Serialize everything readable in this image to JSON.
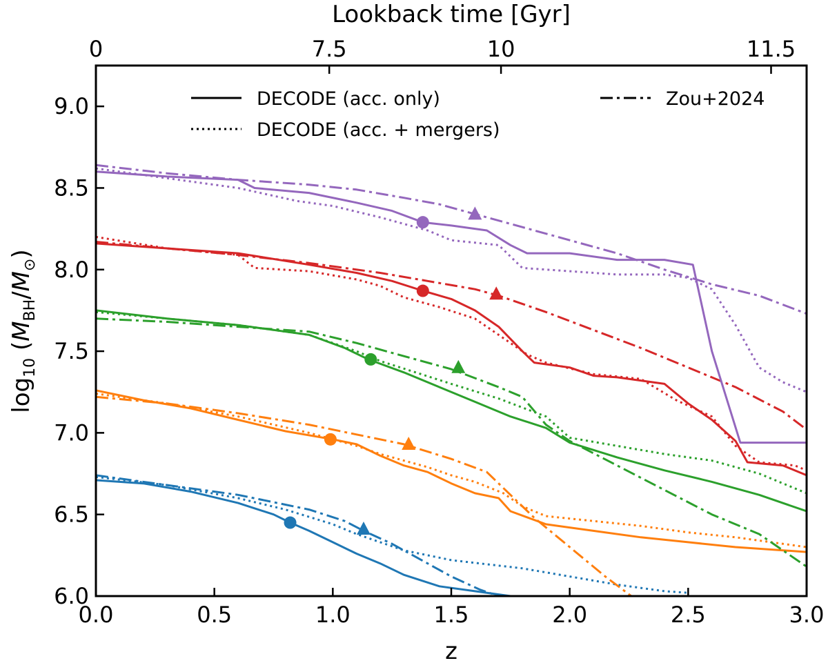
{
  "chart_data": {
    "type": "line",
    "xlabel": "z",
    "ylabel_prefix": "log",
    "ylabel_sub": "10",
    "ylabel_paren_open": " (",
    "ylabel_M1": "M",
    "ylabel_M1_sub": "BH",
    "ylabel_slash": "/",
    "ylabel_M2": "M",
    "ylabel_M2_sub": "⊙",
    "ylabel_paren_close": ")",
    "top_xlabel": "Lookback time [Gyr]",
    "xlim": [
      0.0,
      3.0
    ],
    "ylim": [
      6.0,
      9.25
    ],
    "x_ticks": [
      0.0,
      0.5,
      1.0,
      1.5,
      2.0,
      2.5,
      3.0
    ],
    "x_tick_labels": [
      "0.0",
      "0.5",
      "1.0",
      "1.5",
      "2.0",
      "2.5",
      "3.0"
    ],
    "y_ticks": [
      6.0,
      6.5,
      7.0,
      7.5,
      8.0,
      8.5,
      9.0
    ],
    "y_tick_labels": [
      "6.0",
      "6.5",
      "7.0",
      "7.5",
      "8.0",
      "8.5",
      "9.0"
    ],
    "top_ticks_z": [
      0.0,
      0.985,
      1.71,
      2.85
    ],
    "top_tick_labels": [
      "0",
      "7.5",
      "10",
      "11.5"
    ],
    "legend": [
      {
        "style": "solid",
        "label": "DECODE (acc. only)"
      },
      {
        "style": "dotted",
        "label": "DECODE (acc. + mergers)"
      },
      {
        "style": "dashdot",
        "label": "Zou+2024"
      }
    ],
    "series": [
      {
        "name": "blue",
        "color": "#1f77b4",
        "solid": [
          [
            0,
            6.71
          ],
          [
            0.2,
            6.69
          ],
          [
            0.4,
            6.64
          ],
          [
            0.6,
            6.57
          ],
          [
            0.75,
            6.5
          ],
          [
            0.82,
            6.45
          ],
          [
            0.9,
            6.4
          ],
          [
            1.0,
            6.33
          ],
          [
            1.1,
            6.26
          ],
          [
            1.2,
            6.2
          ],
          [
            1.3,
            6.13
          ],
          [
            1.45,
            6.06
          ],
          [
            1.6,
            6.03
          ],
          [
            1.75,
            6.0
          ]
        ],
        "dotted": [
          [
            0,
            6.73
          ],
          [
            0.3,
            6.68
          ],
          [
            0.6,
            6.6
          ],
          [
            0.8,
            6.53
          ],
          [
            1.0,
            6.44
          ],
          [
            1.1,
            6.38
          ],
          [
            1.2,
            6.33
          ],
          [
            1.3,
            6.28
          ],
          [
            1.5,
            6.22
          ],
          [
            1.8,
            6.17
          ],
          [
            2.0,
            6.12
          ],
          [
            2.2,
            6.07
          ],
          [
            2.4,
            6.03
          ],
          [
            2.5,
            6.02
          ]
        ],
        "dashdot": [
          [
            0,
            6.74
          ],
          [
            0.3,
            6.68
          ],
          [
            0.6,
            6.62
          ],
          [
            0.9,
            6.53
          ],
          [
            1.05,
            6.46
          ],
          [
            1.13,
            6.4
          ],
          [
            1.25,
            6.32
          ],
          [
            1.35,
            6.24
          ],
          [
            1.5,
            6.12
          ],
          [
            1.62,
            6.04
          ],
          [
            1.7,
            6.0
          ]
        ],
        "circle": [
          0.82,
          6.45
        ],
        "triangle": [
          1.13,
          6.41
        ]
      },
      {
        "name": "orange",
        "color": "#ff7f0e",
        "solid": [
          [
            0,
            7.26
          ],
          [
            0.2,
            7.2
          ],
          [
            0.4,
            7.15
          ],
          [
            0.6,
            7.08
          ],
          [
            0.8,
            7.01
          ],
          [
            1.0,
            6.96
          ],
          [
            1.1,
            6.93
          ],
          [
            1.2,
            6.86
          ],
          [
            1.3,
            6.8
          ],
          [
            1.4,
            6.76
          ],
          [
            1.5,
            6.69
          ],
          [
            1.6,
            6.63
          ],
          [
            1.7,
            6.6
          ],
          [
            1.75,
            6.52
          ],
          [
            1.9,
            6.44
          ],
          [
            2.1,
            6.4
          ],
          [
            2.3,
            6.36
          ],
          [
            2.5,
            6.33
          ],
          [
            2.7,
            6.3
          ],
          [
            3.0,
            6.27
          ]
        ],
        "dotted": [
          [
            0,
            7.24
          ],
          [
            0.3,
            7.18
          ],
          [
            0.6,
            7.1
          ],
          [
            0.9,
            7.0
          ],
          [
            1.0,
            6.96
          ],
          [
            1.1,
            6.92
          ],
          [
            1.2,
            6.87
          ],
          [
            1.3,
            6.83
          ],
          [
            1.4,
            6.79
          ],
          [
            1.5,
            6.74
          ],
          [
            1.6,
            6.7
          ],
          [
            1.72,
            6.63
          ],
          [
            1.8,
            6.55
          ],
          [
            1.9,
            6.49
          ],
          [
            2.1,
            6.46
          ],
          [
            2.3,
            6.43
          ],
          [
            2.5,
            6.39
          ],
          [
            2.7,
            6.36
          ],
          [
            3.0,
            6.3
          ]
        ],
        "dashdot": [
          [
            0,
            7.22
          ],
          [
            0.3,
            7.18
          ],
          [
            0.6,
            7.12
          ],
          [
            0.9,
            7.05
          ],
          [
            1.1,
            6.99
          ],
          [
            1.3,
            6.93
          ],
          [
            1.5,
            6.84
          ],
          [
            1.65,
            6.76
          ],
          [
            1.75,
            6.62
          ],
          [
            1.85,
            6.48
          ],
          [
            2.0,
            6.3
          ],
          [
            2.15,
            6.12
          ],
          [
            2.26,
            6.0
          ]
        ],
        "circle": [
          0.99,
          6.96
        ],
        "triangle": [
          1.32,
          6.93
        ]
      },
      {
        "name": "green",
        "color": "#2ca02c",
        "solid": [
          [
            0,
            7.75
          ],
          [
            0.3,
            7.7
          ],
          [
            0.6,
            7.66
          ],
          [
            0.9,
            7.6
          ],
          [
            1.05,
            7.52
          ],
          [
            1.15,
            7.45
          ],
          [
            1.3,
            7.37
          ],
          [
            1.45,
            7.28
          ],
          [
            1.6,
            7.19
          ],
          [
            1.75,
            7.1
          ],
          [
            1.9,
            7.03
          ],
          [
            2.0,
            6.94
          ],
          [
            2.2,
            6.85
          ],
          [
            2.4,
            6.77
          ],
          [
            2.6,
            6.7
          ],
          [
            2.8,
            6.62
          ],
          [
            3.0,
            6.52
          ]
        ],
        "dotted": [
          [
            0,
            7.74
          ],
          [
            0.3,
            7.7
          ],
          [
            0.6,
            7.66
          ],
          [
            0.9,
            7.6
          ],
          [
            1.1,
            7.5
          ],
          [
            1.2,
            7.44
          ],
          [
            1.35,
            7.37
          ],
          [
            1.5,
            7.3
          ],
          [
            1.7,
            7.21
          ],
          [
            1.9,
            7.1
          ],
          [
            2.0,
            6.97
          ],
          [
            2.2,
            6.92
          ],
          [
            2.4,
            6.87
          ],
          [
            2.6,
            6.83
          ],
          [
            2.8,
            6.75
          ],
          [
            3.0,
            6.63
          ]
        ],
        "dashdot": [
          [
            0,
            7.7
          ],
          [
            0.3,
            7.68
          ],
          [
            0.6,
            7.65
          ],
          [
            0.9,
            7.62
          ],
          [
            1.1,
            7.55
          ],
          [
            1.3,
            7.47
          ],
          [
            1.5,
            7.39
          ],
          [
            1.7,
            7.28
          ],
          [
            1.8,
            7.22
          ],
          [
            1.9,
            7.05
          ],
          [
            2.0,
            6.95
          ],
          [
            2.2,
            6.8
          ],
          [
            2.4,
            6.65
          ],
          [
            2.6,
            6.5
          ],
          [
            2.8,
            6.38
          ],
          [
            3.0,
            6.18
          ]
        ],
        "circle": [
          1.16,
          7.45
        ],
        "triangle": [
          1.53,
          7.4
        ]
      },
      {
        "name": "red",
        "color": "#d62728",
        "solid": [
          [
            0,
            8.16
          ],
          [
            0.3,
            8.13
          ],
          [
            0.6,
            8.1
          ],
          [
            0.9,
            8.03
          ],
          [
            1.1,
            7.98
          ],
          [
            1.25,
            7.93
          ],
          [
            1.38,
            7.87
          ],
          [
            1.5,
            7.82
          ],
          [
            1.6,
            7.75
          ],
          [
            1.7,
            7.65
          ],
          [
            1.8,
            7.5
          ],
          [
            1.85,
            7.43
          ],
          [
            2.0,
            7.4
          ],
          [
            2.1,
            7.35
          ],
          [
            2.2,
            7.34
          ],
          [
            2.4,
            7.3
          ],
          [
            2.5,
            7.18
          ],
          [
            2.6,
            7.08
          ],
          [
            2.7,
            6.95
          ],
          [
            2.75,
            6.82
          ],
          [
            2.9,
            6.8
          ],
          [
            3.0,
            6.74
          ]
        ],
        "dotted": [
          [
            0,
            8.2
          ],
          [
            0.3,
            8.13
          ],
          [
            0.6,
            8.09
          ],
          [
            0.67,
            8.01
          ],
          [
            0.9,
            7.99
          ],
          [
            1.1,
            7.94
          ],
          [
            1.2,
            7.9
          ],
          [
            1.3,
            7.83
          ],
          [
            1.45,
            7.77
          ],
          [
            1.6,
            7.7
          ],
          [
            1.7,
            7.6
          ],
          [
            1.82,
            7.48
          ],
          [
            1.9,
            7.43
          ],
          [
            2.1,
            7.36
          ],
          [
            2.3,
            7.33
          ],
          [
            2.45,
            7.2
          ],
          [
            2.6,
            7.1
          ],
          [
            2.7,
            6.92
          ],
          [
            2.8,
            6.82
          ],
          [
            2.95,
            6.8
          ],
          [
            3.0,
            6.77
          ]
        ],
        "dashdot": [
          [
            0,
            8.17
          ],
          [
            0.3,
            8.13
          ],
          [
            0.6,
            8.09
          ],
          [
            0.9,
            8.04
          ],
          [
            1.2,
            7.98
          ],
          [
            1.4,
            7.93
          ],
          [
            1.6,
            7.88
          ],
          [
            1.7,
            7.84
          ],
          [
            1.9,
            7.74
          ],
          [
            2.1,
            7.63
          ],
          [
            2.3,
            7.52
          ],
          [
            2.5,
            7.4
          ],
          [
            2.7,
            7.28
          ],
          [
            2.9,
            7.13
          ],
          [
            3.0,
            7.02
          ]
        ],
        "circle": [
          1.38,
          7.87
        ],
        "triangle": [
          1.69,
          7.85
        ]
      },
      {
        "name": "purple",
        "color": "#9467bd",
        "solid": [
          [
            0,
            8.6
          ],
          [
            0.3,
            8.57
          ],
          [
            0.6,
            8.55
          ],
          [
            0.67,
            8.5
          ],
          [
            0.9,
            8.47
          ],
          [
            1.1,
            8.41
          ],
          [
            1.25,
            8.36
          ],
          [
            1.38,
            8.29
          ],
          [
            1.5,
            8.27
          ],
          [
            1.65,
            8.24
          ],
          [
            1.75,
            8.15
          ],
          [
            1.82,
            8.1
          ],
          [
            2.0,
            8.1
          ],
          [
            2.2,
            8.06
          ],
          [
            2.4,
            8.06
          ],
          [
            2.52,
            8.03
          ],
          [
            2.6,
            7.5
          ],
          [
            2.72,
            6.94
          ],
          [
            3.0,
            6.94
          ]
        ],
        "dotted": [
          [
            0,
            8.62
          ],
          [
            0.3,
            8.56
          ],
          [
            0.6,
            8.5
          ],
          [
            0.85,
            8.42
          ],
          [
            1.0,
            8.39
          ],
          [
            1.2,
            8.32
          ],
          [
            1.4,
            8.24
          ],
          [
            1.5,
            8.18
          ],
          [
            1.7,
            8.15
          ],
          [
            1.8,
            8.01
          ],
          [
            2.0,
            7.99
          ],
          [
            2.2,
            7.97
          ],
          [
            2.4,
            7.97
          ],
          [
            2.5,
            7.95
          ],
          [
            2.6,
            7.88
          ],
          [
            2.7,
            7.66
          ],
          [
            2.8,
            7.4
          ],
          [
            2.9,
            7.31
          ],
          [
            3.0,
            7.25
          ]
        ],
        "dashdot": [
          [
            0,
            8.64
          ],
          [
            0.3,
            8.59
          ],
          [
            0.6,
            8.55
          ],
          [
            0.9,
            8.52
          ],
          [
            1.1,
            8.49
          ],
          [
            1.3,
            8.44
          ],
          [
            1.45,
            8.4
          ],
          [
            1.6,
            8.34
          ],
          [
            1.8,
            8.26
          ],
          [
            2.0,
            8.18
          ],
          [
            2.2,
            8.1
          ],
          [
            2.4,
            8.0
          ],
          [
            2.6,
            7.91
          ],
          [
            2.8,
            7.84
          ],
          [
            3.0,
            7.73
          ]
        ],
        "circle": [
          1.38,
          8.29
        ],
        "triangle": [
          1.6,
          8.34
        ]
      }
    ]
  }
}
